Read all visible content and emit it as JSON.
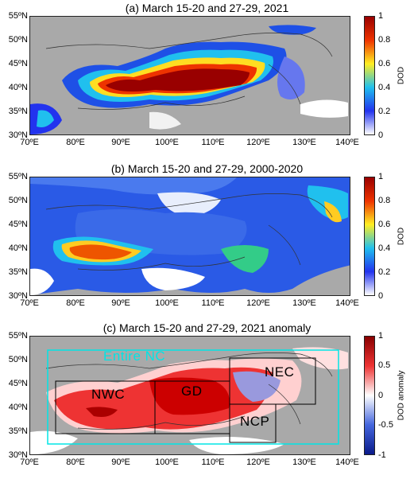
{
  "colorbar_dod": {
    "ticks": [
      "0",
      "0.2",
      "0.4",
      "0.6",
      "0.8",
      "1"
    ],
    "colors": [
      "#ffffff",
      "#2233ee",
      "#20c0ee",
      "#ffee22",
      "#ee3300",
      "#990000"
    ]
  },
  "colorbar_anom": {
    "ticks": [
      "-1",
      "-0.5",
      "0",
      "0.5",
      "1"
    ],
    "colors": [
      "#0a1a8a",
      "#4466dd",
      "#ffffff",
      "#ee3333",
      "#880000"
    ]
  },
  "lat_labels": [
    "55ºN",
    "50ºN",
    "45ºN",
    "40ºN",
    "35ºN",
    "30ºN"
  ],
  "lon_labels": [
    "70ºE",
    "80ºE",
    "90ºE",
    "100ºE",
    "110ºE",
    "120ºE",
    "130ºE",
    "140ºE"
  ],
  "panels": [
    {
      "title": "(a) March 15-20 and 27-29, 2021",
      "colorbar_label": "DOD"
    },
    {
      "title": "(b) March 15-20 and 27-29, 2000-2020",
      "colorbar_label": "DOD"
    },
    {
      "title": "(c) March 15-20 and 27-29, 2021 anomaly",
      "colorbar_label": "DOD anomaly"
    }
  ],
  "regions": {
    "entire": "Entire NC",
    "nwc": "NWC",
    "gd": "GD",
    "nec": "NEC",
    "ncp": "NCP",
    "outline_color": "#00e5e5"
  }
}
